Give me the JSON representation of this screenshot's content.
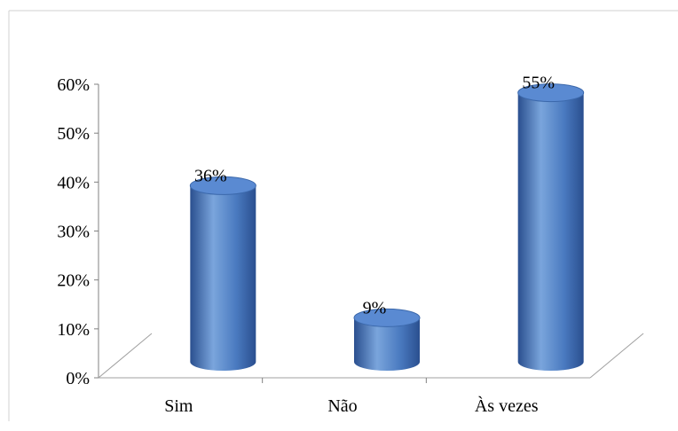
{
  "chart_data": {
    "type": "bar",
    "style": "3d-cylinder",
    "categories": [
      "Sim",
      "Não",
      "Às vezes"
    ],
    "values": [
      36,
      9,
      55
    ],
    "data_labels": [
      "36%",
      "9%",
      "55%"
    ],
    "y_ticks": [
      "0%",
      "10%",
      "20%",
      "30%",
      "40%",
      "50%",
      "60%"
    ],
    "ylim": [
      0,
      60
    ],
    "title": "",
    "xlabel": "",
    "ylabel": "",
    "legend": "none",
    "grid": false,
    "colors": {
      "bar": "#4a7ac0",
      "bar_dark": "#2a4f8f",
      "bar_light": "#7aa5dc",
      "bar_top": "#5a8ad2"
    }
  }
}
